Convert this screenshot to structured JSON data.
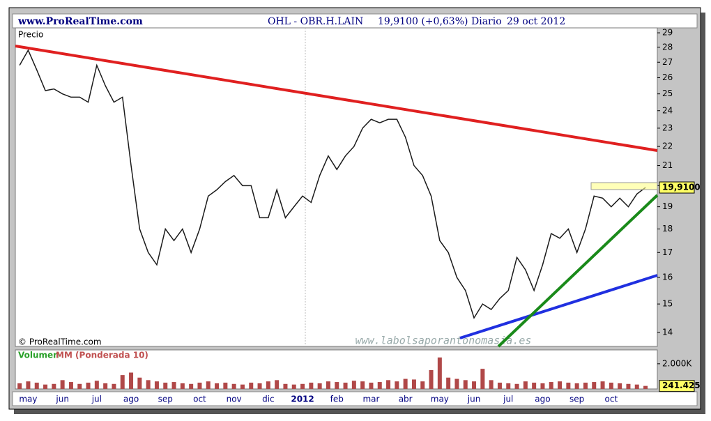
{
  "header": {
    "site": "www.ProRealTime.com",
    "ticker": "OHL - OBR.H.LAIN",
    "quote": "19,9100 (+0,63%)",
    "period": "Diario",
    "date": "29 oct 2012"
  },
  "chart_data": [
    {
      "type": "line",
      "title": "Precio",
      "copyright": "© ProRealTime.com",
      "watermark": "www.labolsaporantonomasia.es",
      "log_scale": true,
      "ylim": [
        13.53,
        29.35
      ],
      "yticks": [
        14,
        15,
        16,
        17,
        18,
        19,
        20,
        21,
        22,
        23,
        24,
        25,
        26,
        27,
        28,
        29
      ],
      "series": [
        {
          "name": "OHL",
          "color": "#1a1a1a",
          "values": [
            26.8,
            27.8,
            26.5,
            25.2,
            25.3,
            25.0,
            24.8,
            24.8,
            24.5,
            26.8,
            25.5,
            24.5,
            24.8,
            21,
            18,
            17,
            16.5,
            18,
            17.5,
            18,
            17,
            18,
            19.5,
            19.8,
            20.2,
            20.5,
            20,
            20,
            18.5,
            18.5,
            19.8,
            18.5,
            19,
            19.5,
            19.2,
            20.5,
            21.5,
            20.8,
            21.5,
            22,
            23,
            23.5,
            23.3,
            23.5,
            23.5,
            22.5,
            21,
            20.5,
            19.5,
            17.5,
            17,
            16,
            15.5,
            14.5,
            15,
            14.8,
            15.2,
            15.5,
            16.8,
            16.3,
            15.5,
            16.5,
            17.8,
            17.6,
            18,
            17,
            18,
            19.5,
            19.4,
            19,
            19.4,
            19,
            19.6,
            19.91
          ],
          "value_labels": [
            null,
            null,
            null,
            null,
            null,
            null,
            null,
            null,
            null,
            null,
            null,
            null,
            null,
            null,
            null,
            null,
            null,
            null,
            null,
            null,
            null,
            null,
            null,
            null,
            null,
            null,
            null,
            null,
            null,
            null,
            null,
            null,
            null,
            null,
            null,
            null,
            null,
            null,
            null,
            null,
            null,
            null,
            null,
            null,
            null,
            null,
            null,
            null,
            null,
            null,
            null,
            null,
            null,
            null,
            null,
            null,
            null,
            null,
            null,
            null,
            null,
            null,
            null,
            null,
            null,
            null,
            null,
            null,
            null,
            null,
            null,
            null,
            null,
            "19,9100"
          ]
        }
      ]
    },
    {
      "type": "bar",
      "title": "Volumen",
      "subtitle": "MM (Ponderada 10)",
      "categories": [
        null,
        "may",
        null,
        null,
        null,
        "jun",
        null,
        null,
        null,
        "jul",
        null,
        null,
        null,
        "ago",
        null,
        null,
        null,
        "sep",
        null,
        null,
        null,
        "oct",
        null,
        null,
        null,
        "nov",
        null,
        null,
        null,
        "dic",
        null,
        null,
        null,
        "2012",
        null,
        null,
        null,
        "feb",
        null,
        null,
        null,
        "mar",
        null,
        null,
        null,
        "abr",
        null,
        null,
        null,
        "may",
        null,
        null,
        null,
        "jun",
        null,
        null,
        null,
        "jul",
        null,
        null,
        null,
        "ago",
        null,
        null,
        null,
        "sep",
        null,
        null,
        null,
        "oct",
        null,
        null,
        null,
        null
      ],
      "ylim": [
        0,
        3100
      ],
      "yticks": [
        {
          "value": 2000,
          "label": "2.000K"
        }
      ],
      "series": [
        {
          "name": "Volumen",
          "color": "#b04848",
          "values": [
            450,
            600,
            500,
            350,
            400,
            700,
            550,
            400,
            500,
            650,
            450,
            400,
            1100,
            1300,
            900,
            700,
            600,
            500,
            550,
            450,
            400,
            500,
            600,
            450,
            500,
            400,
            350,
            500,
            450,
            600,
            700,
            400,
            350,
            400,
            500,
            450,
            600,
            550,
            500,
            650,
            600,
            500,
            550,
            700,
            600,
            800,
            750,
            600,
            1500,
            2500,
            900,
            800,
            700,
            600,
            1600,
            700,
            500,
            450,
            400,
            600,
            500,
            450,
            550,
            600,
            500,
            450,
            500,
            550,
            600,
            500,
            450,
            400,
            350,
            241.425
          ],
          "value_labels": [
            null,
            null,
            null,
            null,
            null,
            null,
            null,
            null,
            null,
            null,
            null,
            null,
            null,
            null,
            null,
            null,
            null,
            null,
            null,
            null,
            null,
            null,
            null,
            null,
            null,
            null,
            null,
            null,
            null,
            null,
            null,
            null,
            null,
            null,
            null,
            null,
            null,
            null,
            null,
            null,
            null,
            null,
            null,
            null,
            null,
            null,
            null,
            null,
            null,
            null,
            null,
            null,
            null,
            null,
            null,
            null,
            null,
            null,
            null,
            null,
            null,
            null,
            null,
            null,
            null,
            null,
            null,
            null,
            null,
            null,
            null,
            null,
            null,
            "241.425"
          ]
        }
      ]
    }
  ]
}
